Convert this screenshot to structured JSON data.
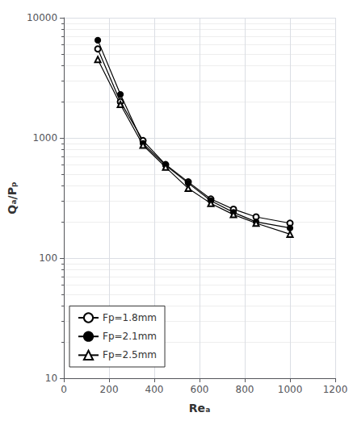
{
  "chart_data": {
    "type": "line",
    "xlabel": "Reₐ",
    "ylabel": "Qₐ/Pₚ",
    "x": [
      150,
      250,
      350,
      450,
      550,
      650,
      750,
      850,
      1000
    ],
    "series": [
      {
        "name": "Fp=1.8mm",
        "color": "black",
        "marker": "circle_open",
        "values": [
          5500,
          2000,
          950,
          600,
          430,
          310,
          255,
          220,
          195
        ]
      },
      {
        "name": "Fp=2.1mm",
        "color": "black",
        "marker": "circle",
        "values": [
          6500,
          2300,
          900,
          590,
          420,
          300,
          240,
          200,
          178
        ]
      },
      {
        "name": "Fp=2.5mm",
        "color": "black",
        "marker": "triangle_open",
        "values": [
          4500,
          1900,
          870,
          570,
          380,
          285,
          230,
          195,
          158
        ]
      }
    ],
    "xlim": [
      0,
      1200
    ],
    "xticks": [
      0,
      200,
      400,
      600,
      800,
      1000,
      1200
    ],
    "ylim": [
      10,
      10000
    ],
    "yticks": [
      10,
      100,
      1000,
      10000
    ],
    "log": "y",
    "grid": true,
    "legend": "lower left"
  }
}
